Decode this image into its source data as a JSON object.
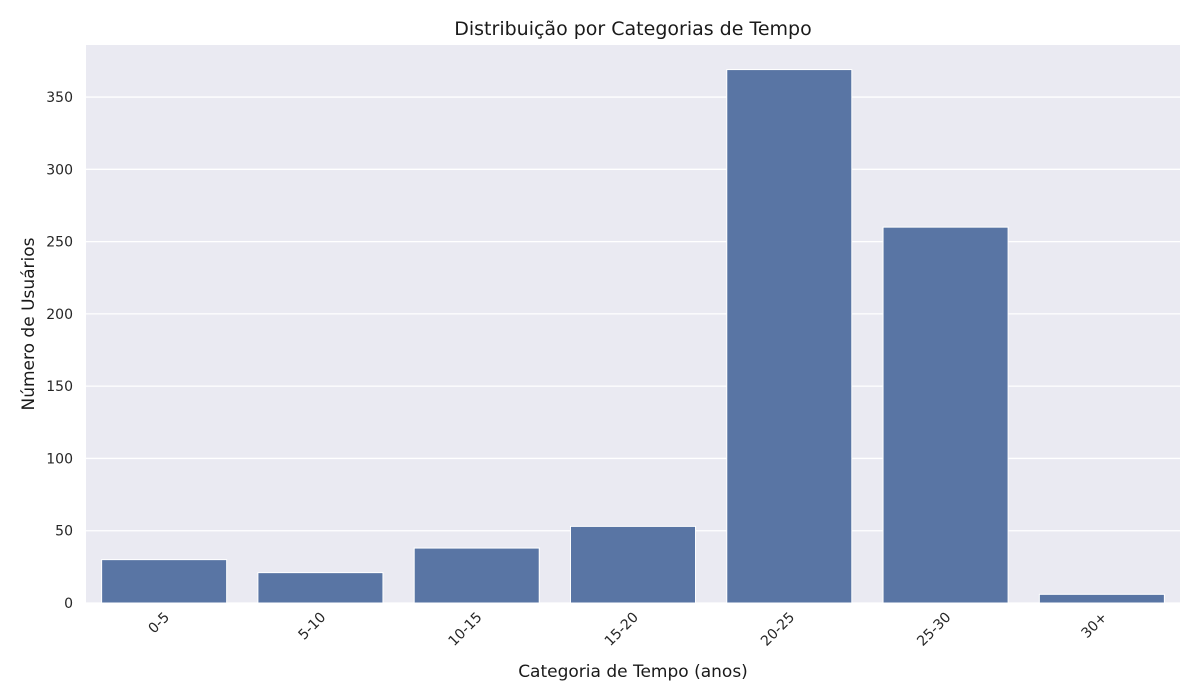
{
  "chart_data": {
    "type": "bar",
    "title": "Distribuição por Categorias de Tempo",
    "xlabel": "Categoria de Tempo (anos)",
    "ylabel": "Número de Usuários",
    "categories": [
      "0-5",
      "5-10",
      "10-15",
      "15-20",
      "20-25",
      "25-30",
      "30+"
    ],
    "values": [
      30,
      21,
      38,
      53,
      369,
      260,
      6
    ],
    "ylim": [
      0,
      386
    ],
    "yticks": [
      0,
      50,
      100,
      150,
      200,
      250,
      300,
      350
    ],
    "grid": true,
    "legend": "none",
    "bar_color": "#5975a4",
    "background_color": "#eaeaf2",
    "grid_color": "#ffffff"
  }
}
